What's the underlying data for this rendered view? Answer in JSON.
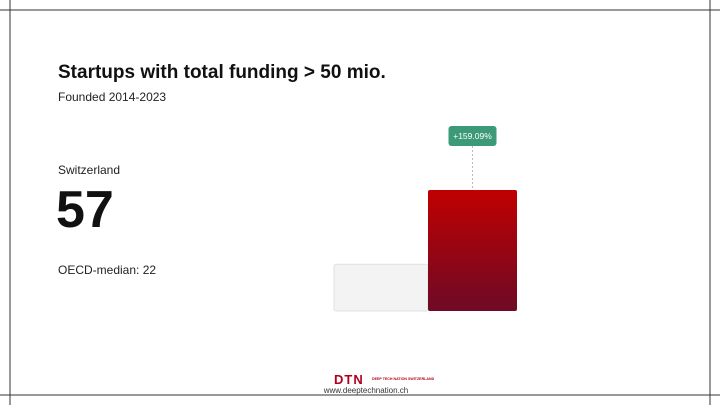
{
  "chart_data": {
    "type": "bar",
    "title": "Startups with total funding > 50 mio.",
    "subtitle": "Founded 2014-2023",
    "categories": [
      null,
      "Switzerland"
    ],
    "values": [
      22,
      57
    ],
    "value_labels": [
      "OECD-median: 22",
      "57"
    ],
    "colors": [
      "#f3f3f3",
      "#c00000"
    ],
    "ylim": [
      0,
      57
    ],
    "annotation": "+159.09%",
    "annotation_color": "#3d9a78"
  },
  "footer": {
    "logo": "DTN",
    "brand": "DEEP TECH NATION SWITZERLAND",
    "url": "www.deeptechnation.ch"
  }
}
